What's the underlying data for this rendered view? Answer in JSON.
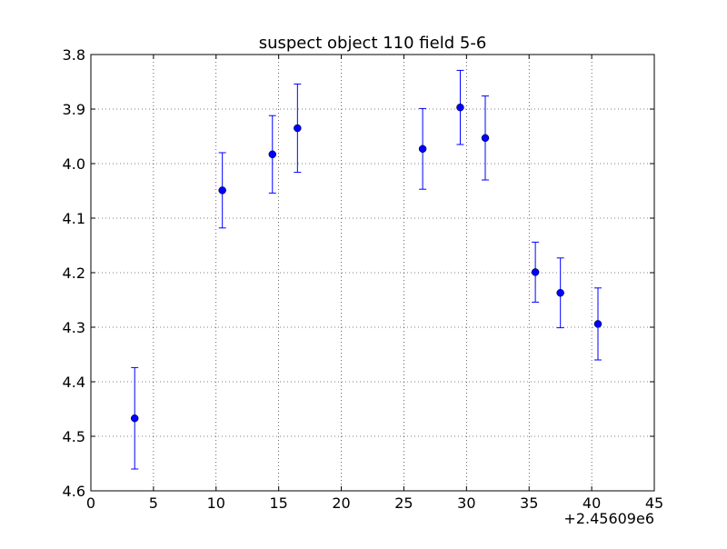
{
  "chart_data": {
    "type": "scatter",
    "title": "suspect object 110 field 5-6",
    "xlabel": "",
    "ylabel": "",
    "x_offset_label": "+2.45609e6",
    "xlim": [
      0,
      45
    ],
    "ylim": [
      4.6,
      3.8
    ],
    "y_inverted": true,
    "xticks": [
      0,
      5,
      10,
      15,
      20,
      25,
      30,
      35,
      40,
      45
    ],
    "yticks": [
      3.8,
      3.9,
      4.0,
      4.1,
      4.2,
      4.3,
      4.4,
      4.5,
      4.6
    ],
    "xtick_labels": [
      "0",
      "5",
      "10",
      "15",
      "20",
      "25",
      "30",
      "35",
      "40",
      "45"
    ],
    "ytick_labels": [
      "3.8",
      "3.9",
      "4.0",
      "4.1",
      "4.2",
      "4.3",
      "4.4",
      "4.5",
      "4.6"
    ],
    "grid": true,
    "marker_color": "#0000ff",
    "points": [
      {
        "x": 3.5,
        "y": 4.467,
        "err": 0.093
      },
      {
        "x": 10.5,
        "y": 4.049,
        "err": 0.069
      },
      {
        "x": 14.5,
        "y": 3.983,
        "err": 0.071
      },
      {
        "x": 16.5,
        "y": 3.935,
        "err": 0.081
      },
      {
        "x": 26.5,
        "y": 3.973,
        "err": 0.074
      },
      {
        "x": 29.5,
        "y": 3.897,
        "err": 0.068
      },
      {
        "x": 31.5,
        "y": 3.953,
        "err": 0.077
      },
      {
        "x": 35.5,
        "y": 4.199,
        "err": 0.055
      },
      {
        "x": 37.5,
        "y": 4.237,
        "err": 0.064
      },
      {
        "x": 40.5,
        "y": 4.294,
        "err": 0.066
      }
    ]
  }
}
